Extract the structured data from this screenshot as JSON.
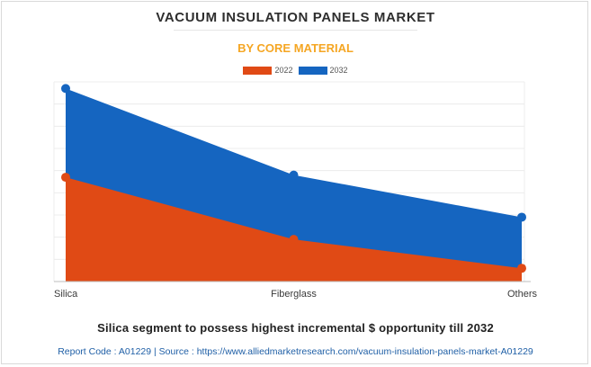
{
  "header": {
    "title": "VACUUM INSULATION PANELS MARKET",
    "subtitle": "BY CORE MATERIAL"
  },
  "colors": {
    "accent": "#f5a623",
    "series_2022": "#e04a15",
    "series_2032": "#1565c0"
  },
  "chart_data": {
    "type": "area",
    "categories": [
      "Silica",
      "Fiberglass",
      "Others"
    ],
    "series": [
      {
        "name": "2022",
        "values": [
          4.7,
          1.9,
          0.6
        ],
        "color": "#e04a15"
      },
      {
        "name": "2032",
        "values": [
          8.7,
          4.8,
          2.9
        ],
        "color": "#1565c0"
      }
    ],
    "ylim": [
      0,
      9
    ],
    "grid": true,
    "legend": "top-center",
    "title": "VACUUM INSULATION PANELS MARKET",
    "subtitle": "BY CORE MATERIAL"
  },
  "footer": {
    "headline": "Silica segment to possess highest incremental $ opportunity till 2032",
    "source": "Report Code : A01229  |  Source : https://www.alliedmarketresearch.com/vacuum-insulation-panels-market-A01229"
  }
}
